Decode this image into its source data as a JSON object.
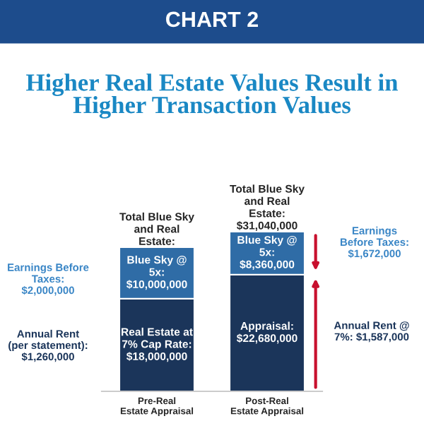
{
  "chart_data": {
    "type": "bar",
    "subtitle": "CHART 2",
    "title": "Higher Real Estate Values Result in Higher Transaction Values",
    "categories": [
      "Pre-Real\nEstate Appraisal",
      "Post-Real\nEstate Appraisal"
    ],
    "stacked": true,
    "series": [
      {
        "color": "#1b355a",
        "values": [
          18000000,
          22680000
        ],
        "value_labels": [
          "Real Estate at\n7% Cap Rate:\n$18,000,000",
          "Appraisal:\n$22,680,000"
        ]
      },
      {
        "color": "#2f6ca6",
        "values": [
          10000000,
          8360000
        ],
        "value_labels": [
          "Blue Sky @\n5x:\n$10,000,000",
          "Blue Sky @\n5x:\n$8,360,000"
        ]
      }
    ],
    "totals": [
      "Total Blue Sky\nand Real\nEstate:",
      "Total Blue Sky\nand Real\nEstate:\n$31,040,000"
    ],
    "annotations": [
      "Earnings Before\nTaxes:\n$2,000,000",
      "Annual Rent\n(per statement):\n$1,260,000",
      "Earnings\nBefore Taxes:\n$1,672,000",
      "Annual Rent @\n7%: $1,587,000"
    ],
    "grid": false,
    "legend": false
  }
}
